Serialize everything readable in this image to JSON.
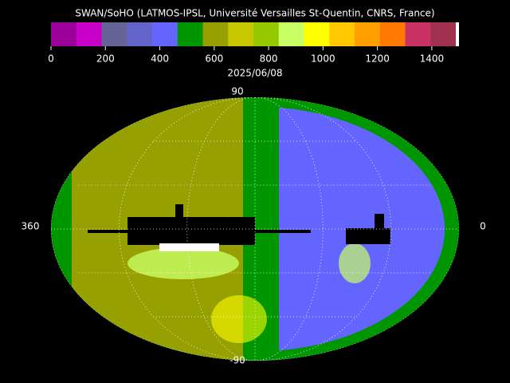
{
  "header": {
    "title": "SWAN/SoHO (LATMOS-IPSL, Université Versailles St-Quentin, CNRS, France)"
  },
  "colorbar": {
    "range": [
      0,
      1500
    ],
    "ticks": [
      0,
      200,
      400,
      600,
      800,
      1000,
      1200,
      1400
    ],
    "colors": [
      "#9b009b",
      "#c800c8",
      "#646496",
      "#6464c8",
      "#6464ff",
      "#009600",
      "#96a000",
      "#c8c800",
      "#96c800",
      "#c8ff64",
      "#ffff00",
      "#ffc800",
      "#ffa000",
      "#ff7800",
      "#c83264",
      "#a03250"
    ]
  },
  "date": "2025/06/08",
  "map": {
    "labels": {
      "top": "90",
      "bottom": "-90",
      "left": "360",
      "right": "0"
    }
  }
}
